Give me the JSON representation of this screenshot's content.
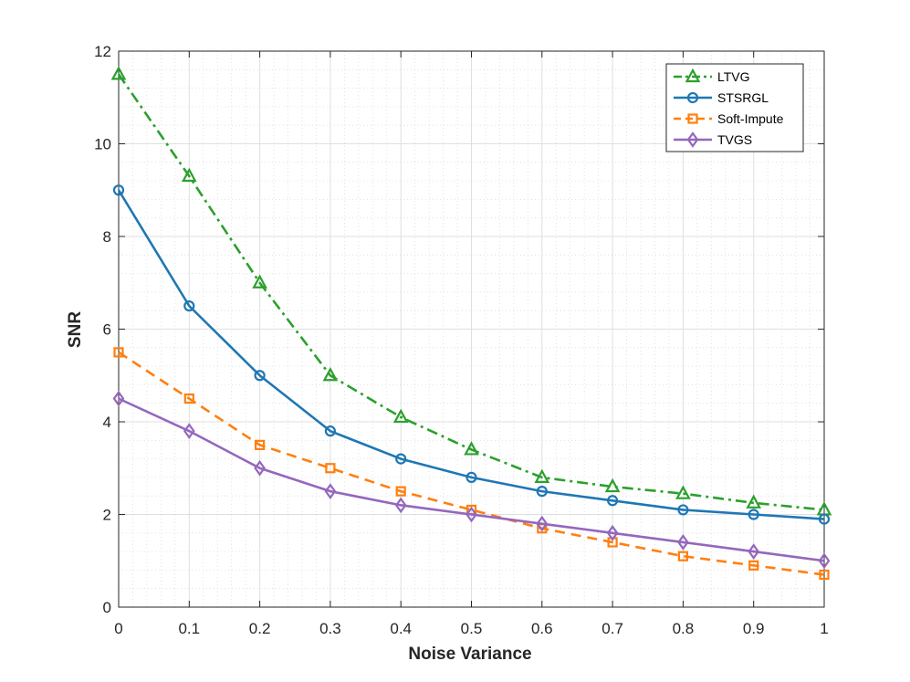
{
  "chart_data": {
    "type": "line",
    "title": "",
    "xlabel": "Noise Variance",
    "ylabel": "SNR",
    "xlim": [
      0,
      1
    ],
    "ylim": [
      0,
      12
    ],
    "xticks": [
      0,
      0.1,
      0.2,
      0.3,
      0.4,
      0.5,
      0.6,
      0.7,
      0.8,
      0.9,
      1
    ],
    "xtick_labels": [
      "0",
      "0.1",
      "0.2",
      "0.3",
      "0.4",
      "0.5",
      "0.6",
      "0.7",
      "0.8",
      "0.9",
      "1"
    ],
    "yticks": [
      0,
      2,
      4,
      6,
      8,
      10,
      12
    ],
    "ytick_labels": [
      "0",
      "2",
      "4",
      "6",
      "8",
      "10",
      "12"
    ],
    "grid": true,
    "minor_grid": true,
    "legend_position": "top-right",
    "x": [
      0,
      0.1,
      0.2,
      0.3,
      0.4,
      0.5,
      0.6,
      0.7,
      0.8,
      0.9,
      1
    ],
    "series": [
      {
        "name": "LTVG",
        "color": "#2ca02c",
        "line": "dashdot",
        "marker": "triangle",
        "values": [
          11.5,
          9.3,
          7.0,
          5.0,
          4.1,
          3.4,
          2.8,
          2.6,
          2.45,
          2.25,
          2.1
        ]
      },
      {
        "name": "STSRGL",
        "color": "#1f77b4",
        "line": "solid",
        "marker": "circle",
        "values": [
          9.0,
          6.5,
          5.0,
          3.8,
          3.2,
          2.8,
          2.5,
          2.3,
          2.1,
          2.0,
          1.9
        ]
      },
      {
        "name": "Soft-Impute",
        "color": "#ff7f0e",
        "line": "dashed",
        "marker": "square",
        "values": [
          5.5,
          4.5,
          3.5,
          3.0,
          2.5,
          2.1,
          1.7,
          1.4,
          1.1,
          0.9,
          0.7
        ]
      },
      {
        "name": "TVGS",
        "color": "#9467bd",
        "line": "solid",
        "marker": "diamond",
        "values": [
          4.5,
          3.8,
          3.0,
          2.5,
          2.2,
          2.0,
          1.8,
          1.6,
          1.4,
          1.2,
          1.0
        ]
      }
    ]
  }
}
